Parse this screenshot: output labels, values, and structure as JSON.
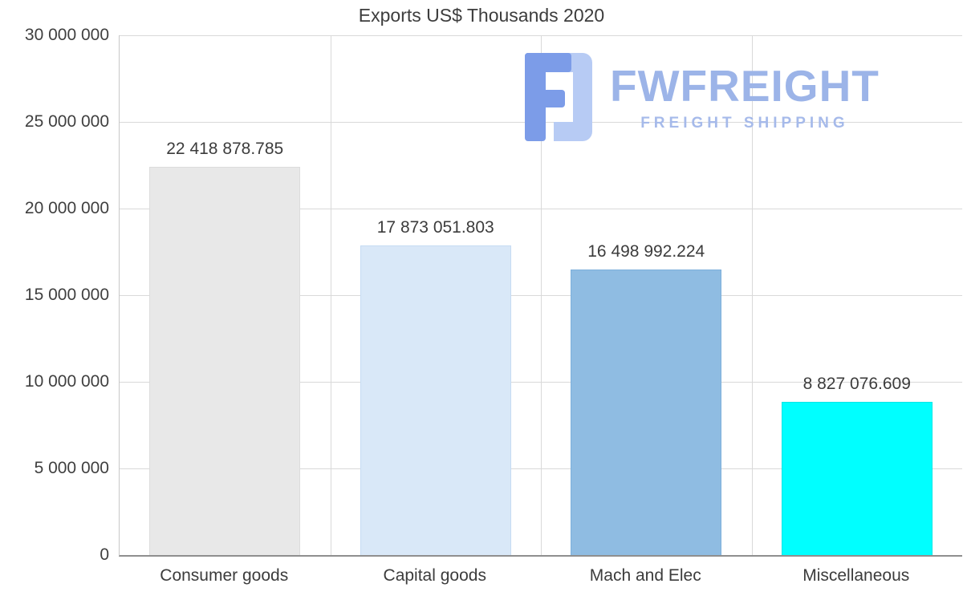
{
  "chart_data": {
    "type": "bar",
    "title": "Exports US$ Thousands 2020",
    "categories": [
      "Consumer goods",
      "Capital goods",
      "Mach and Elec",
      "Miscellaneous"
    ],
    "values": [
      22418878.785,
      17873051.803,
      16498992.224,
      8827076.609
    ],
    "value_labels": [
      "22 418 878.785",
      "17 873 051.803",
      "16 498 992.224",
      "8 827 076.609"
    ],
    "bar_colors": [
      "#e8e8e8",
      "#d9e8f8",
      "#8fbce2",
      "#00ffff"
    ],
    "bar_border_colors": [
      "#dcdcdc",
      "#c6dcf3",
      "#7db0dc",
      "#00e6e6"
    ],
    "xlabel": "",
    "ylabel": "",
    "ylim": [
      0,
      30000000
    ],
    "grid": true,
    "legend": "none",
    "y_ticks": [
      {
        "value": 0,
        "label": "0"
      },
      {
        "value": 5000000,
        "label": "5 000 000"
      },
      {
        "value": 10000000,
        "label": "10 000 000"
      },
      {
        "value": 15000000,
        "label": "15 000 000"
      },
      {
        "value": 20000000,
        "label": "20 000 000"
      },
      {
        "value": 25000000,
        "label": "25 000 000"
      },
      {
        "value": 30000000,
        "label": "30 000 000"
      }
    ]
  },
  "watermark": {
    "brand": "FWFREIGHT",
    "tagline": "FREIGHT SHIPPING",
    "brand_color": "#9cb4e8",
    "icon_dark": "#7c9ce8",
    "icon_light": "#b7cbf4"
  }
}
